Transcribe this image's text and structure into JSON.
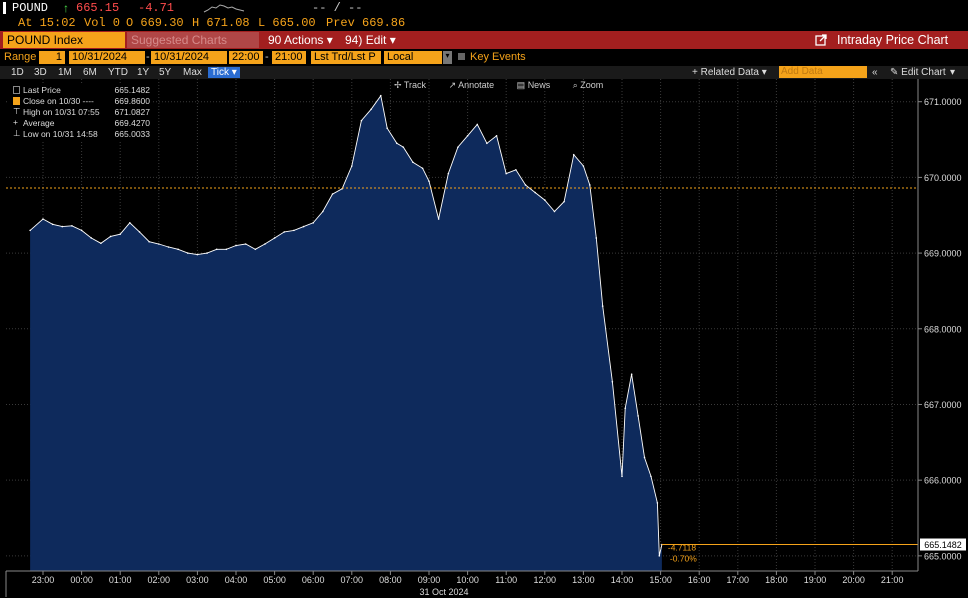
{
  "quote": {
    "ticker": "POUND",
    "arrow": "↑",
    "last": "665.15",
    "change": "-4.71",
    "dashes": "-- / --"
  },
  "quote2": {
    "at": "At 15:02",
    "vol": "Vol 0",
    "o": "O 669.30",
    "h": "H 671.08",
    "l": "L 665.00",
    "prev": "Prev 669.86"
  },
  "toolbar": {
    "security": "POUND Index",
    "suggested": "Suggested Charts",
    "actions_num": "90",
    "actions": "Actions",
    "edit_num": "94)",
    "edit": "Edit",
    "title": "Intraday Price Chart"
  },
  "range": {
    "label": "Range",
    "n": "1",
    "start": "10/31/2024",
    "end": "10/31/2024",
    "t1": "22:00",
    "t2": "21:00",
    "mode": "Lst Trd/Lst P",
    "ccy": "Local CCY",
    "key_events": "Key Events",
    "related": "+ Related Data",
    "add_data": "Add Data",
    "edit_chart": "Edit Chart"
  },
  "periods": [
    "1D",
    "3D",
    "1M",
    "6M",
    "YTD",
    "1Y",
    "5Y",
    "Max"
  ],
  "period_selected": "Tick",
  "chart_tools": [
    "Track",
    "Annotate",
    "News",
    "Zoom"
  ],
  "legend": [
    {
      "label": "Last Price",
      "value": "665.1482"
    },
    {
      "label": "Close on 10/30 ----",
      "value": "669.8600"
    },
    {
      "label": "High on 10/31 07:55",
      "value": "671.0827"
    },
    {
      "label": "Average",
      "value": "669.4270"
    },
    {
      "label": "Low on 10/31 14:58",
      "value": "665.0033"
    }
  ],
  "chart_data": {
    "type": "area",
    "x": [
      "22:40",
      "23:00",
      "23:15",
      "23:30",
      "23:45",
      "00:00",
      "00:15",
      "00:30",
      "00:45",
      "01:00",
      "01:15",
      "01:30",
      "01:45",
      "02:00",
      "02:15",
      "02:30",
      "02:45",
      "03:00",
      "03:15",
      "03:30",
      "03:45",
      "04:00",
      "04:15",
      "04:30",
      "04:45",
      "05:00",
      "05:15",
      "05:30",
      "05:45",
      "06:00",
      "06:15",
      "06:30",
      "06:45",
      "07:00",
      "07:15",
      "07:30",
      "07:45",
      "07:55",
      "08:10",
      "08:20",
      "08:35",
      "08:50",
      "09:00",
      "09:15",
      "09:30",
      "09:45",
      "10:00",
      "10:15",
      "10:30",
      "10:45",
      "11:00",
      "11:15",
      "11:30",
      "11:45",
      "12:00",
      "12:15",
      "12:30",
      "12:45",
      "13:00",
      "13:10",
      "13:20",
      "13:30",
      "13:45",
      "14:00",
      "14:05",
      "14:15",
      "14:25",
      "14:35",
      "14:45",
      "14:55",
      "14:58",
      "15:02"
    ],
    "values": [
      669.3,
      669.45,
      669.38,
      669.35,
      669.36,
      669.3,
      669.2,
      669.13,
      669.22,
      669.25,
      669.4,
      669.28,
      669.15,
      669.12,
      669.08,
      669.05,
      669.0,
      668.98,
      669.0,
      669.05,
      669.05,
      669.1,
      669.12,
      669.05,
      669.12,
      669.2,
      669.28,
      669.3,
      669.35,
      669.4,
      669.55,
      669.78,
      669.85,
      670.15,
      670.75,
      670.9,
      671.08,
      670.65,
      670.45,
      670.4,
      670.2,
      670.12,
      669.95,
      669.45,
      670.05,
      670.4,
      670.55,
      670.7,
      670.45,
      670.55,
      670.05,
      670.1,
      669.9,
      669.8,
      669.7,
      669.55,
      669.68,
      670.3,
      670.15,
      669.9,
      669.2,
      668.3,
      667.3,
      666.05,
      666.95,
      667.4,
      666.85,
      666.3,
      666.05,
      665.7,
      665.0,
      665.15
    ],
    "ylim": [
      664.8,
      671.3
    ],
    "yticks": [
      "665.0000",
      "666.0000",
      "667.0000",
      "668.0000",
      "669.0000",
      "670.0000",
      "671.0000"
    ],
    "xticks": [
      "23:00",
      "00:00",
      "01:00",
      "02:00",
      "03:00",
      "04:00",
      "05:00",
      "06:00",
      "07:00",
      "08:00",
      "09:00",
      "10:00",
      "11:00",
      "12:00",
      "13:00",
      "14:00",
      "15:00",
      "16:00",
      "17:00",
      "18:00",
      "19:00",
      "20:00",
      "21:00"
    ],
    "date_label": "31 Oct 2024",
    "prev_close": 669.86,
    "last_label": "665.1482",
    "change_label": "-4.7118",
    "change_pct": "-0.70%",
    "fill_color": "#0e2a5c",
    "line_color": "#ffffff",
    "ref_line_color": "#f5a31a",
    "grid": true
  }
}
